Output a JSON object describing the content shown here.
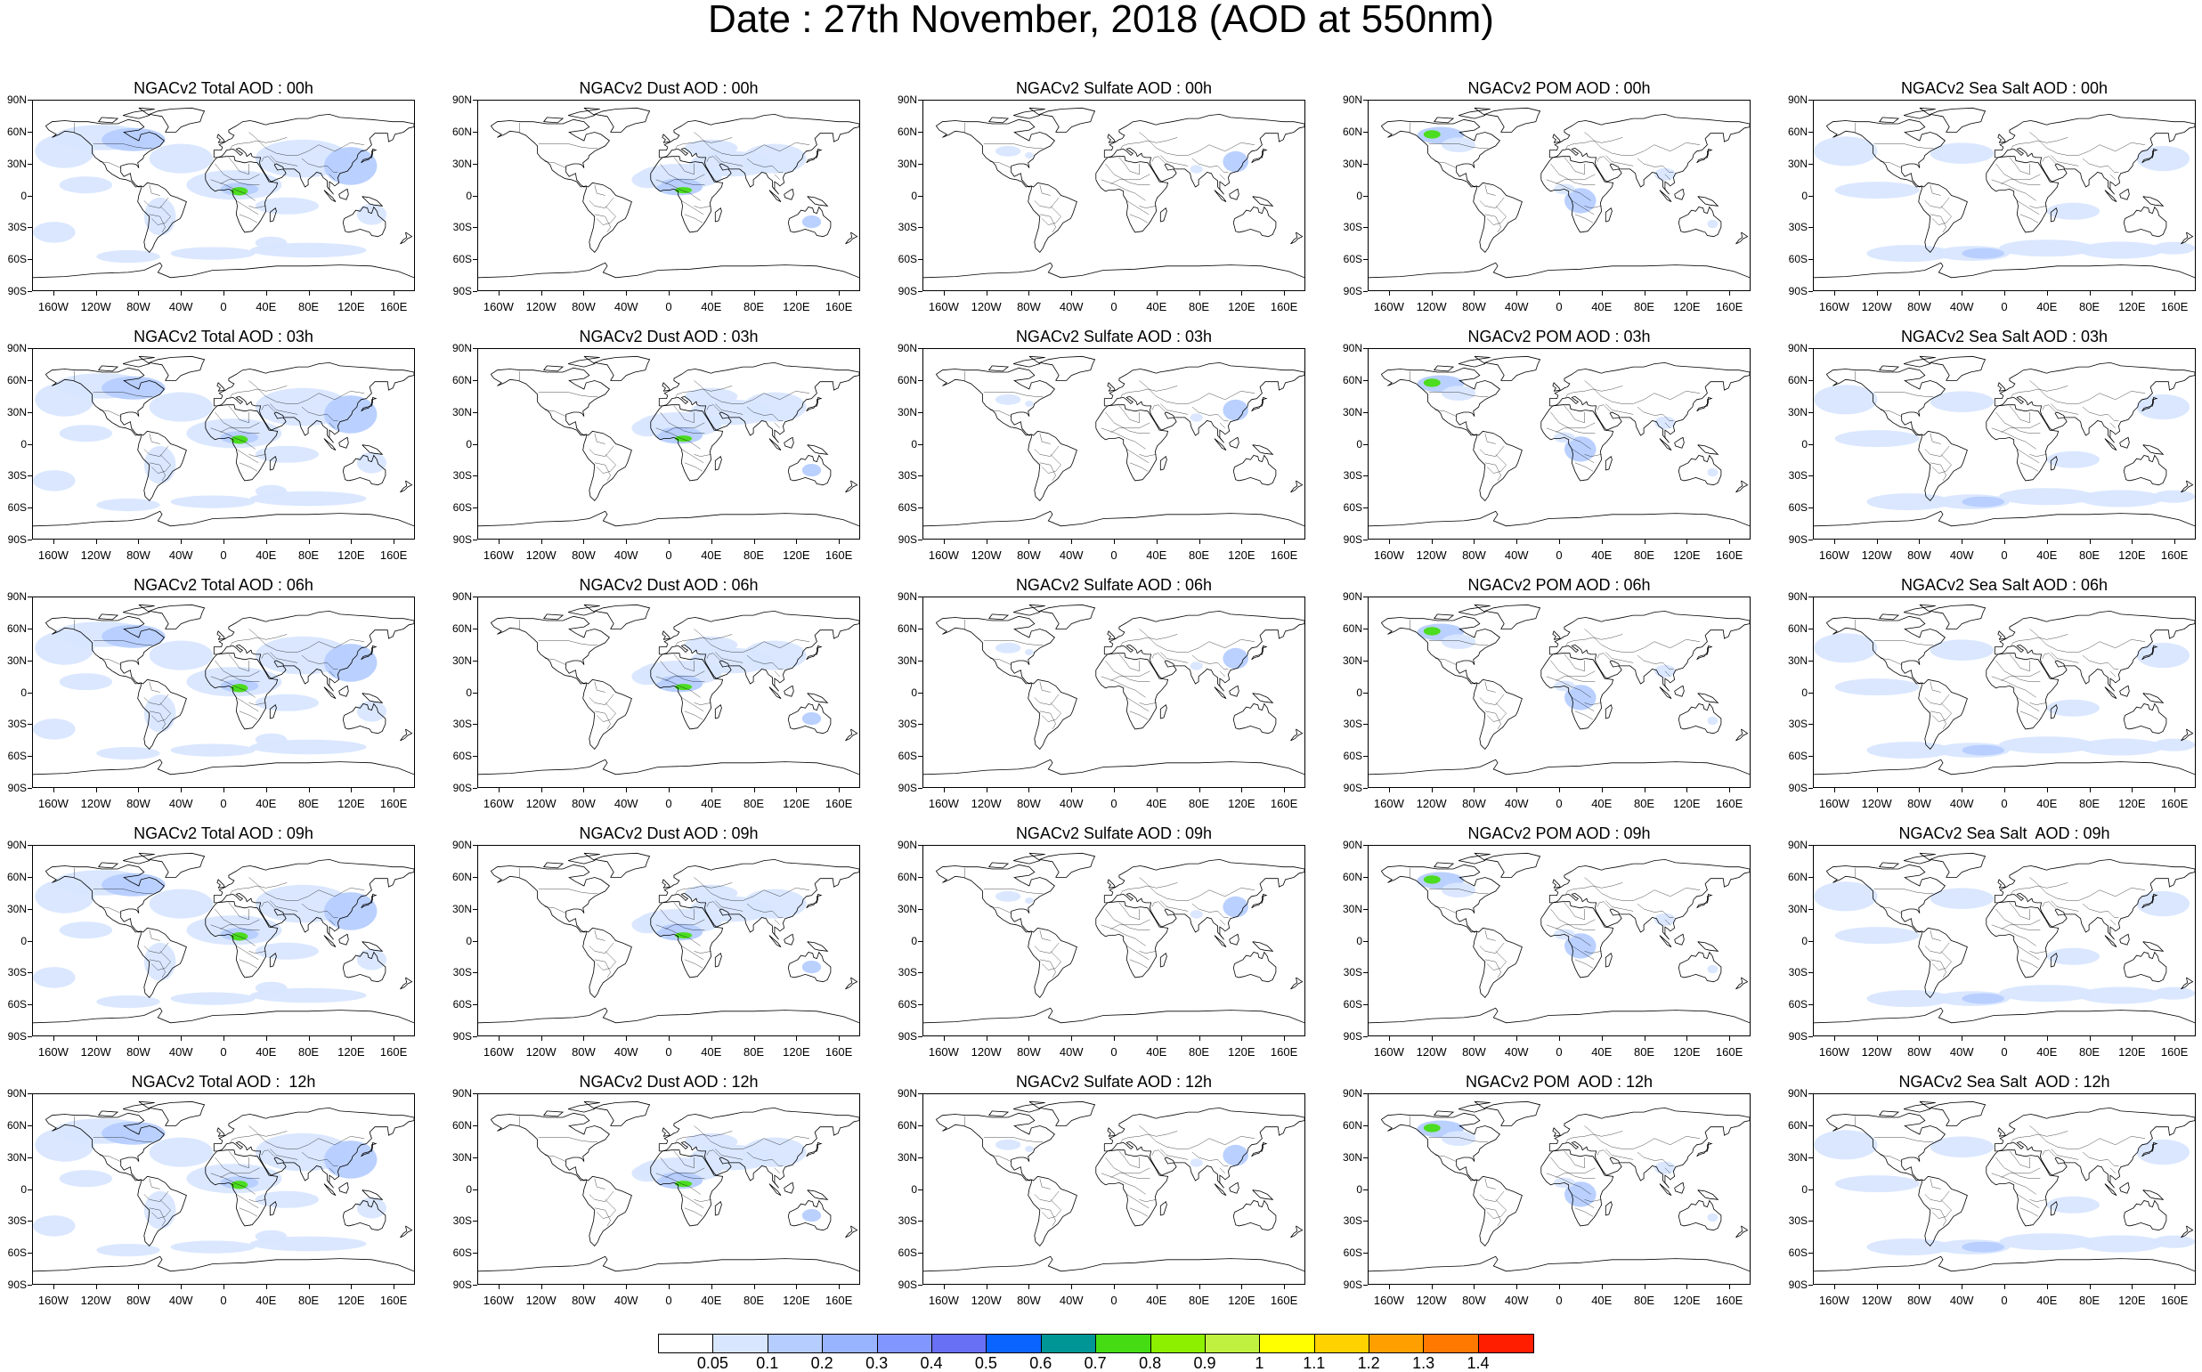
{
  "title": "Date : 27th November, 2018 (AOD at 550nm)",
  "lat_ticks": [
    "90N",
    "60N",
    "30N",
    "0",
    "30S",
    "60S",
    "90S"
  ],
  "lon_ticks": [
    "160W",
    "120W",
    "80W",
    "40W",
    "0",
    "40E",
    "80E",
    "120E",
    "160E"
  ],
  "lon_tick_values": [
    -160,
    -120,
    -80,
    -40,
    0,
    40,
    80,
    120,
    160
  ],
  "colorbar": {
    "labels": [
      "0.05",
      "0.1",
      "0.2",
      "0.3",
      "0.4",
      "0.5",
      "0.6",
      "0.7",
      "0.8",
      "0.9",
      "1",
      "1.1",
      "1.2",
      "1.3",
      "1.4"
    ],
    "colors": [
      "#ffffff",
      "#d8e6ff",
      "#b6cdff",
      "#98b4ff",
      "#8296ff",
      "#6870f5",
      "#0a64ff",
      "#009696",
      "#46dc14",
      "#8cf000",
      "#c0f040",
      "#ffff00",
      "#ffd200",
      "#ffa000",
      "#ff7800",
      "#ff1e00"
    ]
  },
  "colors": {
    "map_fill_light": "#d8e6ff",
    "map_fill_mid": "#b6cdff",
    "map_fill_dark": "#8296ff",
    "land_line": "#000000"
  },
  "panels": [
    {
      "title": "NGACv2 Total AOD : 00h",
      "species": "total"
    },
    {
      "title": "NGACv2 Dust AOD : 00h",
      "species": "dust"
    },
    {
      "title": "NGACv2 Sulfate AOD : 00h",
      "species": "sulfate"
    },
    {
      "title": "NGACv2 POM AOD : 00h",
      "species": "pom"
    },
    {
      "title": "NGACv2 Sea Salt AOD : 00h",
      "species": "seasalt"
    },
    {
      "title": "NGACv2 Total AOD : 03h",
      "species": "total"
    },
    {
      "title": "NGACv2 Dust AOD : 03h",
      "species": "dust"
    },
    {
      "title": "NGACv2 Sulfate AOD : 03h",
      "species": "sulfate"
    },
    {
      "title": "NGACv2 POM AOD : 03h",
      "species": "pom"
    },
    {
      "title": "NGACv2 Sea Salt AOD : 03h",
      "species": "seasalt"
    },
    {
      "title": "NGACv2 Total AOD : 06h",
      "species": "total"
    },
    {
      "title": "NGACv2 Dust AOD : 06h",
      "species": "dust"
    },
    {
      "title": "NGACv2 Sulfate AOD : 06h",
      "species": "sulfate"
    },
    {
      "title": "NGACv2 POM AOD : 06h",
      "species": "pom"
    },
    {
      "title": "NGACv2 Sea Salt AOD : 06h",
      "species": "seasalt"
    },
    {
      "title": "NGACv2 Total AOD : 09h",
      "species": "total"
    },
    {
      "title": "NGACv2 Dust AOD : 09h",
      "species": "dust"
    },
    {
      "title": "NGACv2 Sulfate AOD : 09h",
      "species": "sulfate"
    },
    {
      "title": "NGACv2 POM AOD : 09h",
      "species": "pom"
    },
    {
      "title": "NGACv2 Sea Salt  AOD : 09h",
      "species": "seasalt"
    },
    {
      "title": "NGACv2 Total AOD :  12h",
      "species": "total"
    },
    {
      "title": "NGACv2 Dust AOD : 12h",
      "species": "dust"
    },
    {
      "title": "NGACv2 Sulfate AOD : 12h",
      "species": "sulfate"
    },
    {
      "title": "NGACv2 POM  AOD : 12h",
      "species": "pom"
    },
    {
      "title": "NGACv2 Sea Salt  AOD : 12h",
      "species": "seasalt"
    }
  ]
}
